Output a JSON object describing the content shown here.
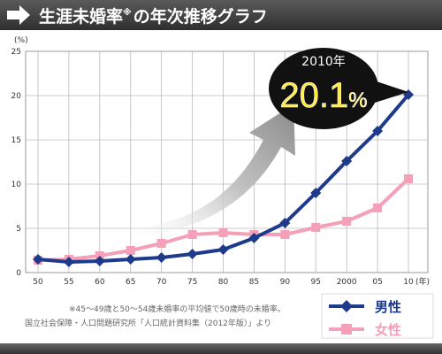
{
  "chart_data": {
    "type": "line",
    "title": "生涯未婚率",
    "title_mark": "※",
    "title_suffix": "の年次推移グラフ",
    "y_unit": "(%)",
    "x_unit": "(年)",
    "ylim": [
      0,
      25
    ],
    "y_ticks": [
      "0",
      "5",
      "10",
      "15",
      "20",
      "25"
    ],
    "x_ticks": [
      "50",
      "55",
      "60",
      "65",
      "70",
      "75",
      "80",
      "85",
      "90",
      "95",
      "2000",
      "05",
      "10"
    ],
    "grid": true,
    "legend_position": "bottom-right",
    "series": [
      {
        "name": "男性",
        "color": "#1e3a8a",
        "marker": "diamond",
        "values": [
          1.5,
          1.2,
          1.3,
          1.5,
          1.7,
          2.1,
          2.6,
          3.9,
          5.6,
          9.0,
          12.6,
          16.0,
          20.1
        ]
      },
      {
        "name": "女性",
        "color": "#f4a0b8",
        "marker": "square",
        "values": [
          1.4,
          1.5,
          1.9,
          2.5,
          3.3,
          4.3,
          4.5,
          4.3,
          4.3,
          5.1,
          5.8,
          7.3,
          10.6
        ]
      }
    ],
    "callout": {
      "year_label": "2010年",
      "value_label": "20.1",
      "value_suffix": "%"
    },
    "notes": [
      "※45〜49歳と50〜54歳未婚率の平均値で50歳時の未婚率。",
      "国立社会保障・人口問題研究所「人口統計資料集（2012年版）」より"
    ]
  },
  "colors": {
    "header_bg": "#3a3a3a",
    "header_text": "#ffffff",
    "male": "#1e3a8a",
    "female": "#f4a0b8",
    "callout_bg": "#111111",
    "callout_value": "#ffec3a"
  }
}
